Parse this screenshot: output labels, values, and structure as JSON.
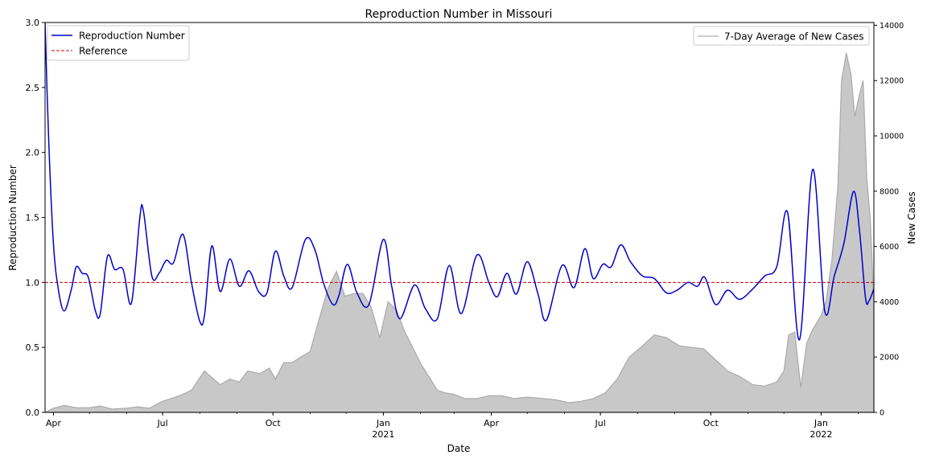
{
  "chart_data": {
    "type": "line",
    "title": "Reproduction Number in Missouri",
    "xlabel": "Date",
    "ylabel": "Reproduction Number",
    "y2label": "New Cases",
    "xlim": [
      "2020-03-25",
      "2022-02-14"
    ],
    "ylim": [
      0,
      3.0
    ],
    "y2lim": [
      0,
      14100
    ],
    "x_tick_labels": [
      {
        "date": "2020-04-01",
        "label": "Apr",
        "sub": ""
      },
      {
        "date": "2020-07-01",
        "label": "Jul",
        "sub": ""
      },
      {
        "date": "2020-10-01",
        "label": "Oct",
        "sub": ""
      },
      {
        "date": "2021-01-01",
        "label": "Jan",
        "sub": "2021"
      },
      {
        "date": "2021-04-01",
        "label": "Apr",
        "sub": ""
      },
      {
        "date": "2021-07-01",
        "label": "Jul",
        "sub": ""
      },
      {
        "date": "2021-10-01",
        "label": "Oct",
        "sub": ""
      },
      {
        "date": "2022-01-01",
        "label": "Jan",
        "sub": "2022"
      }
    ],
    "y_ticks": [
      0.0,
      0.5,
      1.0,
      1.5,
      2.0,
      2.5,
      3.0
    ],
    "y_tick_labels": [
      "0.0",
      "0.5",
      "1.0",
      "1.5",
      "2.0",
      "2.5",
      "3.0"
    ],
    "y2_ticks": [
      0,
      2000,
      4000,
      6000,
      8000,
      10000,
      12000,
      14000
    ],
    "y2_tick_labels": [
      "0",
      "2000",
      "4000",
      "6000",
      "8000",
      "10000",
      "12000",
      "14000"
    ],
    "grid": false,
    "legend_left": {
      "placement": "top-left",
      "entries": [
        {
          "name": "Reproduction Number",
          "color": "#0000cc",
          "style": "solid"
        },
        {
          "name": "Reference",
          "color": "#cc0000",
          "style": "dashed"
        }
      ]
    },
    "legend_right": {
      "placement": "top-right",
      "entries": [
        {
          "name": "7-Day Average of New Cases",
          "color": "#aaaaaa",
          "style": "solid"
        }
      ]
    },
    "reference_value": 1.0,
    "series": [
      {
        "name": "Reproduction Number",
        "axis": "left",
        "color": "#0000cc",
        "points": [
          [
            "2020-03-25",
            3.0
          ],
          [
            "2020-03-28",
            2.1
          ],
          [
            "2020-04-01",
            1.3
          ],
          [
            "2020-04-05",
            0.95
          ],
          [
            "2020-04-10",
            0.78
          ],
          [
            "2020-04-16",
            0.95
          ],
          [
            "2020-04-20",
            1.12
          ],
          [
            "2020-04-25",
            1.07
          ],
          [
            "2020-04-30",
            1.04
          ],
          [
            "2020-05-06",
            0.78
          ],
          [
            "2020-05-10",
            0.76
          ],
          [
            "2020-05-16",
            1.2
          ],
          [
            "2020-05-22",
            1.1
          ],
          [
            "2020-05-29",
            1.1
          ],
          [
            "2020-06-05",
            0.84
          ],
          [
            "2020-06-12",
            1.5
          ],
          [
            "2020-06-15",
            1.55
          ],
          [
            "2020-06-22",
            1.05
          ],
          [
            "2020-06-28",
            1.07
          ],
          [
            "2020-07-04",
            1.17
          ],
          [
            "2020-07-10",
            1.15
          ],
          [
            "2020-07-18",
            1.37
          ],
          [
            "2020-07-25",
            1.0
          ],
          [
            "2020-08-01",
            0.7
          ],
          [
            "2020-08-05",
            0.75
          ],
          [
            "2020-08-11",
            1.28
          ],
          [
            "2020-08-18",
            0.93
          ],
          [
            "2020-08-26",
            1.18
          ],
          [
            "2020-09-03",
            0.97
          ],
          [
            "2020-09-11",
            1.09
          ],
          [
            "2020-09-19",
            0.93
          ],
          [
            "2020-09-26",
            0.92
          ],
          [
            "2020-10-03",
            1.24
          ],
          [
            "2020-10-10",
            1.05
          ],
          [
            "2020-10-17",
            0.96
          ],
          [
            "2020-10-28",
            1.33
          ],
          [
            "2020-11-05",
            1.25
          ],
          [
            "2020-11-12",
            1.0
          ],
          [
            "2020-11-20",
            0.83
          ],
          [
            "2020-11-25",
            0.9
          ],
          [
            "2020-12-02",
            1.14
          ],
          [
            "2020-12-10",
            0.92
          ],
          [
            "2020-12-20",
            0.83
          ],
          [
            "2021-01-01",
            1.33
          ],
          [
            "2021-01-08",
            0.97
          ],
          [
            "2021-01-15",
            0.72
          ],
          [
            "2021-01-27",
            0.98
          ],
          [
            "2021-02-05",
            0.8
          ],
          [
            "2021-02-15",
            0.72
          ],
          [
            "2021-02-25",
            1.13
          ],
          [
            "2021-03-07",
            0.76
          ],
          [
            "2021-03-20",
            1.21
          ],
          [
            "2021-03-30",
            1.0
          ],
          [
            "2021-04-06",
            0.89
          ],
          [
            "2021-04-14",
            1.07
          ],
          [
            "2021-04-22",
            0.91
          ],
          [
            "2021-05-01",
            1.16
          ],
          [
            "2021-05-10",
            0.91
          ],
          [
            "2021-05-17",
            0.71
          ],
          [
            "2021-05-30",
            1.13
          ],
          [
            "2021-06-09",
            0.96
          ],
          [
            "2021-06-18",
            1.26
          ],
          [
            "2021-06-25",
            1.03
          ],
          [
            "2021-07-03",
            1.14
          ],
          [
            "2021-07-10",
            1.12
          ],
          [
            "2021-07-18",
            1.29
          ],
          [
            "2021-07-26",
            1.16
          ],
          [
            "2021-08-05",
            1.05
          ],
          [
            "2021-08-15",
            1.03
          ],
          [
            "2021-08-25",
            0.92
          ],
          [
            "2021-09-03",
            0.94
          ],
          [
            "2021-09-12",
            1.0
          ],
          [
            "2021-09-20",
            0.97
          ],
          [
            "2021-09-26",
            1.04
          ],
          [
            "2021-10-05",
            0.83
          ],
          [
            "2021-10-15",
            0.94
          ],
          [
            "2021-10-25",
            0.87
          ],
          [
            "2021-11-05",
            0.95
          ],
          [
            "2021-11-15",
            1.05
          ],
          [
            "2021-11-25",
            1.12
          ],
          [
            "2021-12-04",
            1.54
          ],
          [
            "2021-12-14",
            0.56
          ],
          [
            "2021-12-25",
            1.87
          ],
          [
            "2022-01-04",
            0.78
          ],
          [
            "2022-01-12",
            1.05
          ],
          [
            "2022-01-20",
            1.3
          ],
          [
            "2022-01-28",
            1.7
          ],
          [
            "2022-02-02",
            1.4
          ],
          [
            "2022-02-07",
            0.88
          ],
          [
            "2022-02-10",
            0.86
          ],
          [
            "2022-02-14",
            0.95
          ]
        ]
      },
      {
        "name": "7-Day Average of New Cases",
        "axis": "right",
        "color": "#aaaaaa",
        "fill": "#c8c8c8",
        "points": [
          [
            "2020-03-25",
            0
          ],
          [
            "2020-04-01",
            150
          ],
          [
            "2020-04-10",
            250
          ],
          [
            "2020-04-20",
            170
          ],
          [
            "2020-05-01",
            170
          ],
          [
            "2020-05-10",
            230
          ],
          [
            "2020-05-20",
            120
          ],
          [
            "2020-06-01",
            150
          ],
          [
            "2020-06-10",
            200
          ],
          [
            "2020-06-20",
            150
          ],
          [
            "2020-07-01",
            400
          ],
          [
            "2020-07-15",
            600
          ],
          [
            "2020-07-25",
            800
          ],
          [
            "2020-08-05",
            1500
          ],
          [
            "2020-08-10",
            1300
          ],
          [
            "2020-08-18",
            1000
          ],
          [
            "2020-08-26",
            1200
          ],
          [
            "2020-09-03",
            1100
          ],
          [
            "2020-09-10",
            1500
          ],
          [
            "2020-09-20",
            1400
          ],
          [
            "2020-09-28",
            1600
          ],
          [
            "2020-10-03",
            1200
          ],
          [
            "2020-10-10",
            1800
          ],
          [
            "2020-10-17",
            1800
          ],
          [
            "2020-10-24",
            2000
          ],
          [
            "2020-11-01",
            2200
          ],
          [
            "2020-11-08",
            3300
          ],
          [
            "2020-11-16",
            4500
          ],
          [
            "2020-11-23",
            5100
          ],
          [
            "2020-11-30",
            4200
          ],
          [
            "2020-12-08",
            4300
          ],
          [
            "2020-12-15",
            4300
          ],
          [
            "2020-12-22",
            3800
          ],
          [
            "2020-12-29",
            2700
          ],
          [
            "2021-01-05",
            4000
          ],
          [
            "2021-01-12",
            3700
          ],
          [
            "2021-01-19",
            2900
          ],
          [
            "2021-01-26",
            2300
          ],
          [
            "2021-02-02",
            1700
          ],
          [
            "2021-02-08",
            1300
          ],
          [
            "2021-02-15",
            800
          ],
          [
            "2021-02-22",
            700
          ],
          [
            "2021-03-01",
            650
          ],
          [
            "2021-03-10",
            500
          ],
          [
            "2021-03-20",
            500
          ],
          [
            "2021-03-30",
            600
          ],
          [
            "2021-04-10",
            600
          ],
          [
            "2021-04-20",
            500
          ],
          [
            "2021-05-01",
            550
          ],
          [
            "2021-05-15",
            500
          ],
          [
            "2021-05-25",
            450
          ],
          [
            "2021-06-05",
            350
          ],
          [
            "2021-06-15",
            400
          ],
          [
            "2021-06-25",
            500
          ],
          [
            "2021-07-05",
            700
          ],
          [
            "2021-07-15",
            1200
          ],
          [
            "2021-07-25",
            2000
          ],
          [
            "2021-08-05",
            2400
          ],
          [
            "2021-08-15",
            2800
          ],
          [
            "2021-08-25",
            2700
          ],
          [
            "2021-09-05",
            2400
          ],
          [
            "2021-09-15",
            2350
          ],
          [
            "2021-09-25",
            2300
          ],
          [
            "2021-10-05",
            1900
          ],
          [
            "2021-10-15",
            1500
          ],
          [
            "2021-10-25",
            1300
          ],
          [
            "2021-11-05",
            1000
          ],
          [
            "2021-11-15",
            950
          ],
          [
            "2021-11-25",
            1100
          ],
          [
            "2021-12-01",
            1500
          ],
          [
            "2021-12-05",
            2800
          ],
          [
            "2021-12-10",
            2900
          ],
          [
            "2021-12-15",
            900
          ],
          [
            "2021-12-20",
            2500
          ],
          [
            "2021-12-25",
            3000
          ],
          [
            "2022-01-01",
            3500
          ],
          [
            "2022-01-05",
            4000
          ],
          [
            "2022-01-10",
            5500
          ],
          [
            "2022-01-15",
            8200
          ],
          [
            "2022-01-18",
            12000
          ],
          [
            "2022-01-22",
            13000
          ],
          [
            "2022-01-26",
            12200
          ],
          [
            "2022-01-29",
            10700
          ],
          [
            "2022-02-02",
            11500
          ],
          [
            "2022-02-05",
            12000
          ],
          [
            "2022-02-08",
            8500
          ],
          [
            "2022-02-11",
            7000
          ],
          [
            "2022-02-14",
            3900
          ]
        ]
      }
    ]
  }
}
